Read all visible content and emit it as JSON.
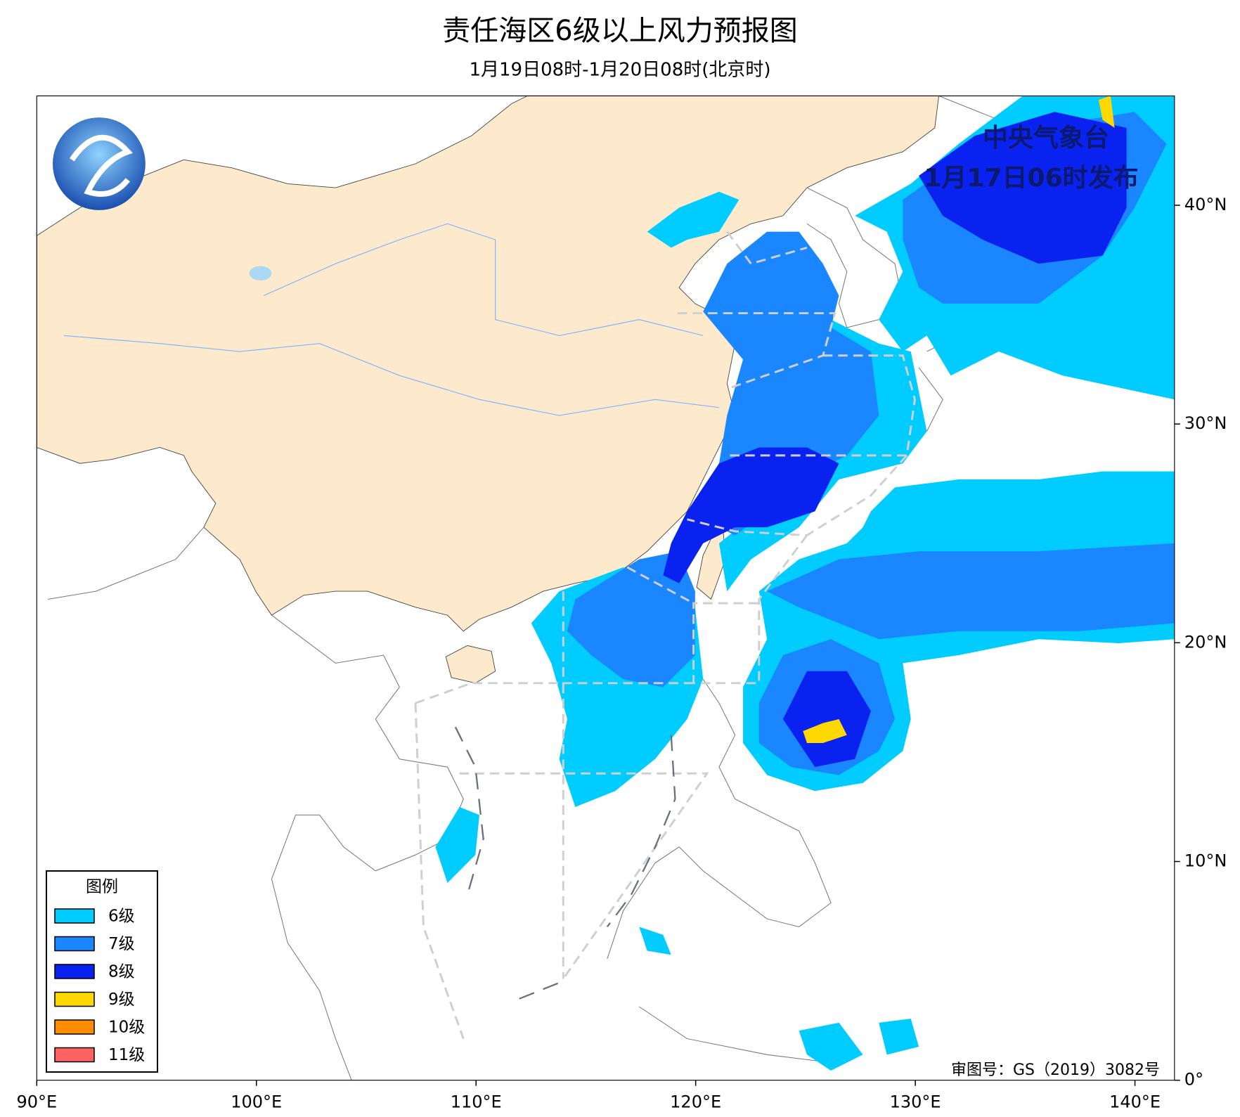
{
  "header": {
    "title": "责任海区6级以上风力预报图",
    "subtitle": "1月19日08时-1月20日08时(北京时)"
  },
  "issuer": {
    "name": "中央气象台",
    "time": "1月17日06时发布"
  },
  "approval": "审图号：GS（2019）3082号",
  "legend": {
    "title": "图例",
    "items": [
      {
        "label": "6级",
        "color": "#00ccff"
      },
      {
        "label": "7级",
        "color": "#1a86ff"
      },
      {
        "label": "8级",
        "color": "#0a22f0"
      },
      {
        "label": "9级",
        "color": "#ffd800"
      },
      {
        "label": "10级",
        "color": "#ff8c00"
      },
      {
        "label": "11级",
        "color": "#ff6262"
      }
    ]
  },
  "map": {
    "xlim": [
      90,
      141.8
    ],
    "ylim": [
      0,
      45
    ],
    "xticks": [
      {
        "value": 90,
        "label": "90°E"
      },
      {
        "value": 100,
        "label": "100°E"
      },
      {
        "value": 110,
        "label": "110°E"
      },
      {
        "value": 120,
        "label": "120°E"
      },
      {
        "value": 130,
        "label": "130°E"
      },
      {
        "value": 140,
        "label": "140°E"
      }
    ],
    "yticks": [
      {
        "value": 0,
        "label": "0°"
      },
      {
        "value": 10,
        "label": "10°N"
      },
      {
        "value": 20,
        "label": "20°N"
      },
      {
        "value": 30,
        "label": "30°N"
      },
      {
        "value": 40,
        "label": "40°N"
      }
    ]
  }
}
